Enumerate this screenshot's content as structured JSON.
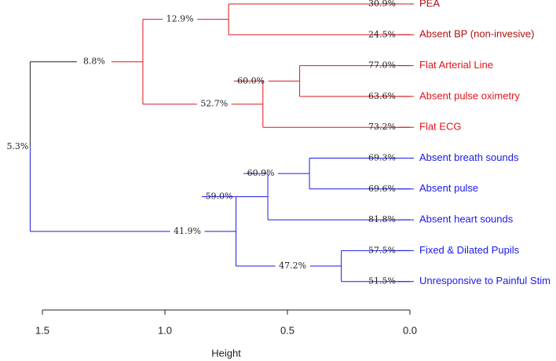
{
  "chart_data": {
    "type": "dendrogram",
    "orientation": "horizontal",
    "xlabel": "Height",
    "xlim": [
      1.58,
      0.0
    ],
    "x_ticks": [
      "1.5",
      "1.0",
      "0.5",
      "0.0"
    ],
    "colors": {
      "red": "#e0141b",
      "dark_red": "#b01010",
      "blue": "#1a1aeb",
      "root": "#222222"
    },
    "leaves": [
      {
        "label": "PEA",
        "support": "30.9%",
        "color": "#b01010"
      },
      {
        "label": "Absent BP (non-invesive)",
        "support": "24.5%",
        "color": "#b01010"
      },
      {
        "label": "Flat Arterial Line",
        "support": "77.0%",
        "color": "#e0141b"
      },
      {
        "label": "Absent pulse oximetry",
        "support": "63.6%",
        "color": "#e0141b"
      },
      {
        "label": "Flat ECG",
        "support": "73.2%",
        "color": "#e0141b"
      },
      {
        "label": "Absent breath sounds",
        "support": "69.3%",
        "color": "#1a1aeb"
      },
      {
        "label": "Absent pulse",
        "support": "69.6%",
        "color": "#1a1aeb"
      },
      {
        "label": "Absent heart sounds",
        "support": "81.8%",
        "color": "#1a1aeb"
      },
      {
        "label": "Fixed & Dilated Pupils",
        "support": "57.5%",
        "color": "#1a1aeb"
      },
      {
        "label": "Unresponsive to Painful Stim",
        "support": "51.5%",
        "color": "#1a1aeb"
      }
    ],
    "merges": [
      {
        "id": "m1",
        "children": [
          "leaf0",
          "leaf1"
        ],
        "height": 0.74,
        "support": "12.9%",
        "color": "#e0141b"
      },
      {
        "id": "m2",
        "children": [
          "leaf2",
          "leaf3"
        ],
        "height": 0.45,
        "support": "60.0%",
        "color": "#e0141b"
      },
      {
        "id": "m3",
        "children": [
          "m2",
          "leaf4"
        ],
        "height": 0.6,
        "support": "52.7%",
        "color": "#e0141b"
      },
      {
        "id": "m4",
        "children": [
          "m1",
          "m3"
        ],
        "height": 1.09,
        "support": "8.8%",
        "color": "#e0141b"
      },
      {
        "id": "m5",
        "children": [
          "leaf5",
          "leaf6"
        ],
        "height": 0.41,
        "support": "60.9%",
        "color": "#1a1aeb"
      },
      {
        "id": "m6",
        "children": [
          "m5",
          "leaf7"
        ],
        "height": 0.58,
        "support": "59.0%",
        "color": "#1a1aeb"
      },
      {
        "id": "m7",
        "children": [
          "leaf8",
          "leaf9"
        ],
        "height": 0.28,
        "support": "47.2%",
        "color": "#1a1aeb"
      },
      {
        "id": "m8",
        "children": [
          "m6",
          "m7"
        ],
        "height": 0.71,
        "support": "41.9%",
        "color": "#1a1aeb"
      },
      {
        "id": "root",
        "children": [
          "m4",
          "m8"
        ],
        "height": 1.55,
        "support": "5.3%",
        "color": "#222222"
      }
    ]
  }
}
